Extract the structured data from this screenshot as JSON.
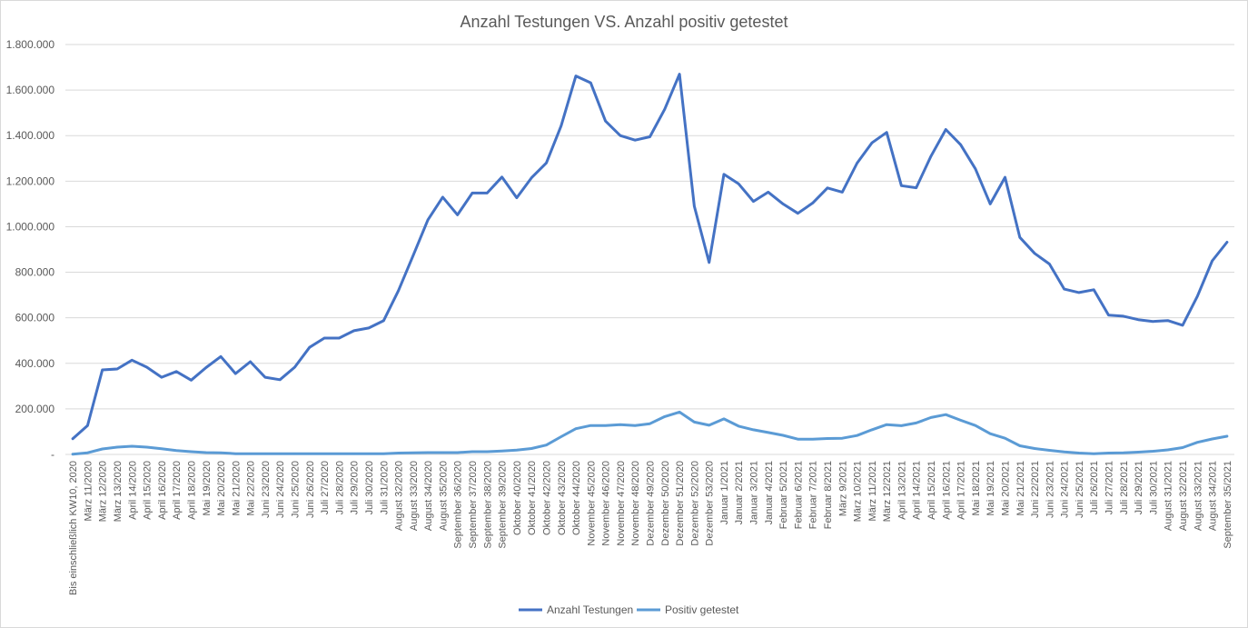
{
  "chart_data": {
    "type": "line",
    "title": "Anzahl Testungen VS. Anzahl positiv getestet",
    "xlabel": "",
    "ylabel": "",
    "ylim": [
      0,
      1800000
    ],
    "yticks": [
      0,
      200000,
      400000,
      600000,
      800000,
      1000000,
      1200000,
      1400000,
      1600000,
      1800000
    ],
    "ytick_labels": [
      "-",
      "200.000",
      "400.000",
      "600.000",
      "800.000",
      "1.000.000",
      "1.200.000",
      "1.400.000",
      "1.600.000",
      "1.800.000"
    ],
    "grid": true,
    "legend_position": "bottom",
    "categories": [
      "Bis einschließlich KW10, 2020",
      "März 11/2020",
      "März 12/2020",
      "März 13/2020",
      "April 14/2020",
      "April 15/2020",
      "April 16/2020",
      "April 17/2020",
      "April 18/2020",
      "Mai 19/2020",
      "Mai 20/2020",
      "Mai 21/2020",
      "Mai 22/2020",
      "Juni 23/2020",
      "Juni 24/2020",
      "Juni 25/2020",
      "Juni 26/2020",
      "Juli 27/2020",
      "Juli 28/2020",
      "Juli 29/2020",
      "Juli 30/2020",
      "Juli 31/2020",
      "August 32/2020",
      "August 33/2020",
      "August 34/2020",
      "August 35/2020",
      "September 36/2020",
      "September 37/2020",
      "September 38/2020",
      "September 39/2020",
      "Oktober 40/2020",
      "Oktober 41/2020",
      "Oktober 42/2020",
      "Oktober 43/2020",
      "Oktober 44/2020",
      "November 45/2020",
      "November 46/2020",
      "November 47/2020",
      "November 48/2020",
      "Dezember 49/2020",
      "Dezember 50/2020",
      "Dezember 51/2020",
      "Dezember 52/2020",
      "Dezember 53/2020",
      "Januar 1/2021",
      "Januar 2/2021",
      "Januar 3/2021",
      "Januar 4/2021",
      "Februar 5/2021",
      "Februar 6/2021",
      "Februar 7/2021",
      "Februar 8/2021",
      "März 9/2021",
      "März 10/2021",
      "März 11/2021",
      "März 12/2021",
      "April 13/2021",
      "April 14/2021",
      "April 15/2021",
      "April 16/2021",
      "April 17/2021",
      "Mai 18/2021",
      "Mai 19/2021",
      "Mai 20/2021",
      "Mai 21/2021",
      "Juni 22/2021",
      "Juni 23/2021",
      "Juni 24/2021",
      "Juni 25/2021",
      "Juli 26/2021",
      "Juli 27/2021",
      "Juli 28/2021",
      "Juli 29/2021",
      "Juli 30/2021",
      "August 31/2021",
      "August 32/2021",
      "August 33/2021",
      "August 34/2021",
      "September 35/2021"
    ],
    "series": [
      {
        "name": "Anzahl Testungen",
        "color": "#4472c4",
        "values": [
          69000,
          127000,
          371000,
          375000,
          414000,
          383000,
          339000,
          364000,
          326000,
          381000,
          430000,
          355000,
          407000,
          339000,
          328000,
          383000,
          470000,
          511000,
          511000,
          543000,
          555000,
          587000,
          719000,
          873000,
          1030000,
          1130000,
          1052000,
          1148000,
          1148000,
          1218000,
          1127000,
          1215000,
          1280000,
          1443000,
          1662000,
          1632000,
          1464000,
          1400000,
          1380000,
          1395000,
          1516000,
          1670000,
          1090000,
          843000,
          1230000,
          1188000,
          1111000,
          1152000,
          1100000,
          1059000,
          1104000,
          1170000,
          1152000,
          1279000,
          1368000,
          1414000,
          1180000,
          1171000,
          1310000,
          1427000,
          1360000,
          1254000,
          1100000,
          1217000,
          953000,
          883000,
          836000,
          726000,
          711000,
          723000,
          612000,
          607000,
          592000,
          584000,
          588000,
          567000,
          695000,
          850000,
          932000
        ]
      },
      {
        "name": "Positiv getestet",
        "color": "#5b9bd5",
        "values": [
          1000,
          7000,
          24000,
          32000,
          36000,
          32000,
          25000,
          17000,
          12000,
          8000,
          7000,
          3000,
          3000,
          3000,
          3000,
          3000,
          3000,
          3000,
          3000,
          3000,
          3000,
          3000,
          6000,
          7000,
          8000,
          8000,
          8000,
          12000,
          12000,
          15000,
          19000,
          26000,
          41000,
          78000,
          113000,
          127000,
          127000,
          131000,
          127000,
          135000,
          166000,
          186000,
          142000,
          128000,
          156000,
          124000,
          108000,
          96000,
          84000,
          67000,
          67000,
          70000,
          71000,
          83000,
          108000,
          131000,
          126000,
          138000,
          162000,
          175000,
          150000,
          127000,
          91000,
          71000,
          38000,
          26000,
          18000,
          11000,
          6000,
          3000,
          6000,
          7000,
          10000,
          14000,
          20000,
          30000,
          53000,
          68000,
          80000
        ]
      }
    ]
  }
}
